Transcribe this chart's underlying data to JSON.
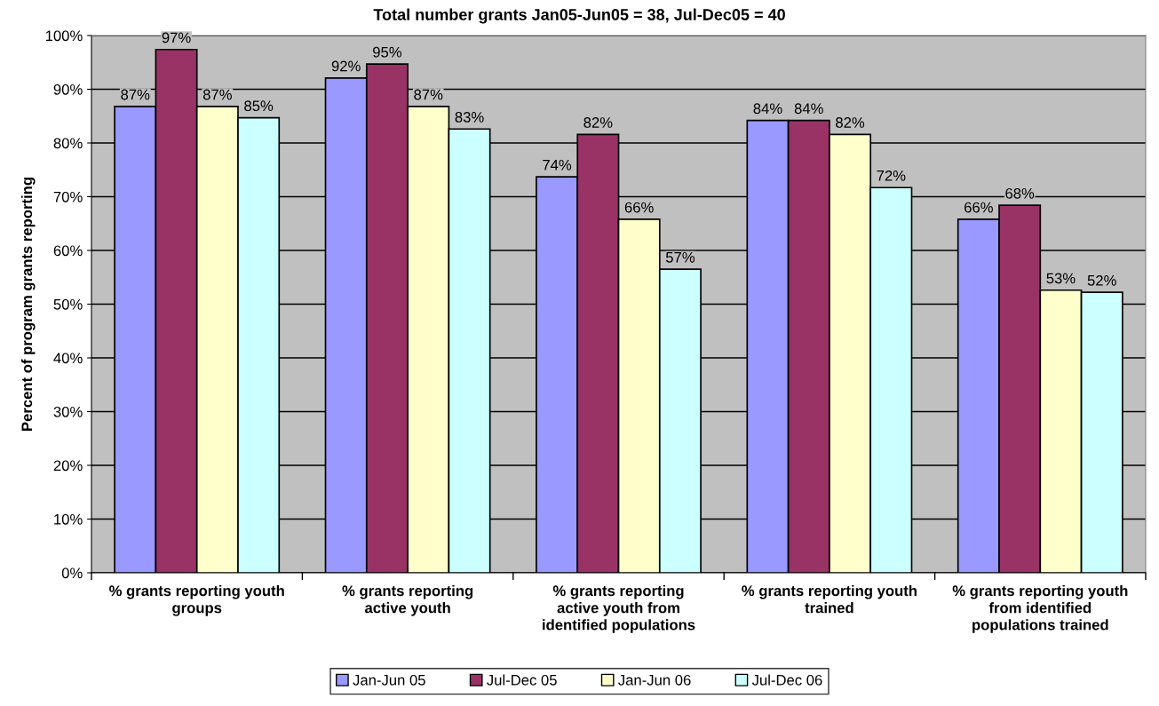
{
  "chart_data": {
    "type": "bar",
    "title": "Total number grants Jan05-Jun05 = 38, Jul-Dec05 = 40",
    "ylabel": "Percent of program grants reporting",
    "categories": [
      "% grants reporting youth groups",
      "% grants reporting active youth",
      "% grants reporting active youth from identified populations",
      "% grants reporting youth trained",
      "% grants reporting youth from identified populations trained"
    ],
    "series": [
      {
        "name": "Jan-Jun 05",
        "color": "#9999ff",
        "values": [
          86.8,
          92.1,
          73.7,
          84.2,
          65.8
        ],
        "value_labels": [
          "87%",
          "92%",
          "74%",
          "84%",
          "66%"
        ]
      },
      {
        "name": "Jul-Dec 05",
        "color": "#993366",
        "values": [
          97.4,
          94.7,
          81.6,
          84.2,
          68.4
        ],
        "value_labels": [
          "97%",
          "95%",
          "82%",
          "84%",
          "68%"
        ]
      },
      {
        "name": "Jan-Jun 06",
        "color": "#ffffcc",
        "values": [
          86.8,
          86.8,
          65.8,
          81.6,
          52.6
        ],
        "value_labels": [
          "87%",
          "87%",
          "66%",
          "82%",
          "53%"
        ]
      },
      {
        "name": "Jul-Dec 06",
        "color": "#ccffff",
        "values": [
          84.7,
          82.6,
          56.5,
          71.7,
          52.2
        ],
        "value_labels": [
          "85%",
          "83%",
          "57%",
          "72%",
          "52%"
        ]
      }
    ],
    "ylim": [
      0,
      100
    ],
    "yticks": [
      {
        "value": 0,
        "label": "0%"
      },
      {
        "value": 10,
        "label": "10%"
      },
      {
        "value": 20,
        "label": "20%"
      },
      {
        "value": 30,
        "label": "30%"
      },
      {
        "value": 40,
        "label": "40%"
      },
      {
        "value": 50,
        "label": "50%"
      },
      {
        "value": 60,
        "label": "60%"
      },
      {
        "value": 70,
        "label": "70%"
      },
      {
        "value": 80,
        "label": "80%"
      },
      {
        "value": 90,
        "label": "90%"
      },
      {
        "value": 100,
        "label": "100%"
      }
    ],
    "grid": "y",
    "legend": "bottom"
  }
}
